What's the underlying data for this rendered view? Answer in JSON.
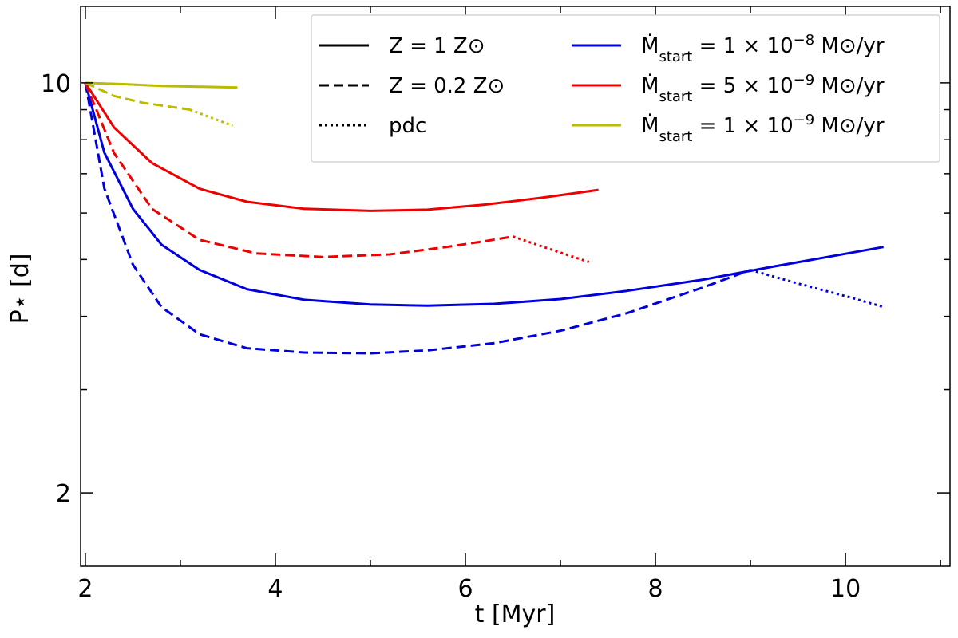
{
  "chart_data": {
    "type": "line",
    "xlabel": "t [Myr]",
    "ylabel": "P⋆ [d]",
    "xlim": [
      1.95,
      11.1
    ],
    "ylim": [
      1.5,
      13.5
    ],
    "yscale": "log",
    "xticks": [
      2,
      4,
      6,
      8,
      10
    ],
    "yticks": [
      2,
      10
    ],
    "ytick_labels": [
      "2",
      "10"
    ],
    "legend_position": "top-right",
    "legend": {
      "styles": [
        {
          "label": "Z = 1 Z⊙",
          "dash": "solid"
        },
        {
          "label": "Z = 0.2 Z⊙",
          "dash": "dashed"
        },
        {
          "label": "pdc",
          "dash": "dotted"
        }
      ],
      "colors": [
        {
          "prefix": "Ṁ",
          "sub": "start",
          "text": " = 1 × 10",
          "sup": "−8",
          "suffix": " M⊙/yr",
          "color": "#0000dd"
        },
        {
          "prefix": "Ṁ",
          "sub": "start",
          "text": " = 5 × 10",
          "sup": "−9",
          "suffix": " M⊙/yr",
          "color": "#ee0000"
        },
        {
          "prefix": "Ṁ",
          "sub": "start",
          "text": " = 1 × 10",
          "sup": "−9",
          "suffix": " M⊙/yr",
          "color": "#bbbb00"
        }
      ]
    },
    "series": [
      {
        "name": "Ṁ 1e-8, Z = 1",
        "color": "#0000dd",
        "dash": "solid",
        "x": [
          2.0,
          2.2,
          2.5,
          2.8,
          3.2,
          3.7,
          4.3,
          5.0,
          5.6,
          6.3,
          7.0,
          7.7,
          8.5,
          9.2,
          9.9,
          10.4
        ],
        "y": [
          10.0,
          7.6,
          6.1,
          5.3,
          4.8,
          4.45,
          4.27,
          4.19,
          4.17,
          4.2,
          4.28,
          4.42,
          4.62,
          4.85,
          5.08,
          5.25
        ]
      },
      {
        "name": "Ṁ 1e-8, Z = 0.2",
        "color": "#0000dd",
        "dash": "dashed",
        "x": [
          2.0,
          2.2,
          2.5,
          2.8,
          3.2,
          3.7,
          4.3,
          5.0,
          5.6,
          6.3,
          7.0,
          7.7,
          8.5,
          9.0
        ],
        "y": [
          10.0,
          6.6,
          4.9,
          4.15,
          3.73,
          3.53,
          3.47,
          3.46,
          3.5,
          3.6,
          3.78,
          4.05,
          4.48,
          4.8
        ]
      },
      {
        "name": "Ṁ 1e-8, pdc",
        "color": "#0000dd",
        "dash": "dotted",
        "x": [
          9.0,
          9.5,
          10.0,
          10.4
        ],
        "y": [
          4.8,
          4.55,
          4.33,
          4.15
        ]
      },
      {
        "name": "Ṁ 5e-9, Z = 1",
        "color": "#ee0000",
        "dash": "solid",
        "x": [
          2.0,
          2.3,
          2.7,
          3.2,
          3.7,
          4.3,
          5.0,
          5.6,
          6.2,
          6.8,
          7.4
        ],
        "y": [
          10.0,
          8.4,
          7.3,
          6.6,
          6.27,
          6.1,
          6.05,
          6.08,
          6.2,
          6.37,
          6.57
        ]
      },
      {
        "name": "Ṁ 5e-9, Z = 0.2",
        "color": "#ee0000",
        "dash": "dashed",
        "x": [
          2.0,
          2.3,
          2.7,
          3.2,
          3.8,
          4.5,
          5.2,
          5.8,
          6.2,
          6.5
        ],
        "y": [
          10.0,
          7.6,
          6.1,
          5.4,
          5.12,
          5.05,
          5.1,
          5.25,
          5.37,
          5.47
        ]
      },
      {
        "name": "Ṁ 5e-9, pdc",
        "color": "#ee0000",
        "dash": "dotted",
        "x": [
          6.5,
          6.9,
          7.3
        ],
        "y": [
          5.47,
          5.2,
          4.95
        ]
      },
      {
        "name": "Ṁ 1e-9, Z = 1",
        "color": "#bbbb00",
        "dash": "solid",
        "x": [
          2.0,
          2.4,
          2.8,
          3.2,
          3.6
        ],
        "y": [
          10.0,
          9.95,
          9.88,
          9.85,
          9.82
        ]
      },
      {
        "name": "Ṁ 1e-9, Z = 0.2",
        "color": "#bbbb00",
        "dash": "dashed",
        "x": [
          2.0,
          2.3,
          2.6,
          2.9,
          3.1
        ],
        "y": [
          10.0,
          9.5,
          9.25,
          9.1,
          9.0
        ]
      },
      {
        "name": "Ṁ 1e-9, pdc",
        "color": "#bbbb00",
        "dash": "dotted",
        "x": [
          3.1,
          3.3,
          3.55
        ],
        "y": [
          9.0,
          8.75,
          8.45
        ]
      }
    ]
  }
}
